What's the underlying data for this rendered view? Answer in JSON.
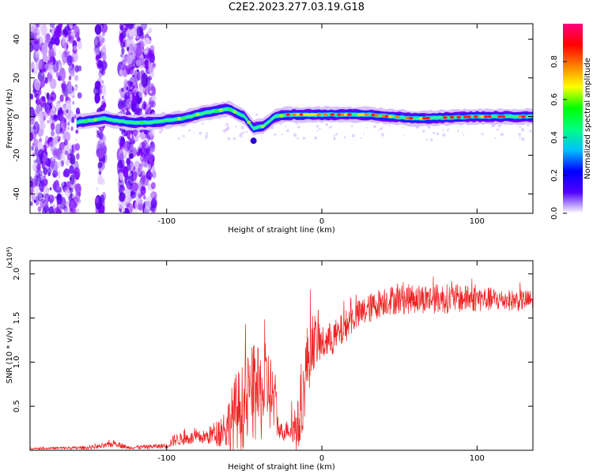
{
  "title": "C2E2.2023.277.03.19.G18",
  "chart_data": [
    {
      "type": "heatmap",
      "name": "spectrogram",
      "xlabel": "Height of straight line (km)",
      "ylabel": "Frequency (Hz)",
      "xlim": [
        -188,
        136
      ],
      "ylim": [
        -50,
        48
      ],
      "xticks": [
        -100,
        0,
        100
      ],
      "xtick_labels": [
        "-100",
        "0",
        "100"
      ],
      "yticks": [
        -40,
        -20,
        0,
        20,
        40
      ],
      "ytick_labels": [
        "-40",
        "-20",
        "0",
        "20",
        "40"
      ],
      "ridge": {
        "x": [
          -158,
          -140,
          -125,
          -110,
          -90,
          -75,
          -60,
          -50,
          -44,
          -38,
          -30,
          -22,
          0,
          30,
          60,
          100,
          136
        ],
        "frequency": [
          -3,
          -1,
          -3,
          -3,
          -1,
          2,
          4,
          0,
          -6,
          -5,
          0,
          1,
          1,
          1,
          -1,
          0,
          0
        ]
      },
      "noise_region_x": [
        -188,
        -108
      ],
      "colorbar": {
        "label": "Normalized spectral amplitude",
        "range": [
          0,
          1
        ],
        "ticks": [
          0.0,
          0.2,
          0.4,
          0.6,
          0.8
        ],
        "tick_labels": [
          "0.0",
          "0.2",
          "0.4",
          "0.6",
          "0.8"
        ],
        "colors": [
          "#ffffff",
          "#5000ff",
          "#0000ff",
          "#00c0ff",
          "#00ff80",
          "#00ff00",
          "#ffff00",
          "#ff8000",
          "#ff0000",
          "#ff0080"
        ]
      }
    },
    {
      "type": "line",
      "name": "snr",
      "xlabel": "Height of straight line (km)",
      "ylabel": "SNR (10 * v/v)",
      "y_scale_label": "(x10⁴)",
      "xlim": [
        -188,
        136
      ],
      "ylim": [
        0,
        2.15
      ],
      "xticks": [
        -100,
        0,
        100
      ],
      "xtick_labels": [
        "-100",
        "0",
        "100"
      ],
      "yticks": [
        0.5,
        1.0,
        1.5,
        2.0
      ],
      "ytick_labels": [
        "0.5",
        "1.0",
        "1.5",
        "2.0"
      ],
      "color": "#ee2222",
      "envelope": {
        "x": [
          -188,
          -150,
          -140,
          -133,
          -125,
          -100,
          -95,
          -75,
          -68,
          -62,
          -55,
          -50,
          -45,
          -40,
          -35,
          -30,
          -28,
          -25,
          -22,
          -18,
          -14,
          -10,
          -6,
          0,
          10,
          20,
          30,
          40,
          60,
          80,
          100,
          120,
          136
        ],
        "mean": [
          0.02,
          0.03,
          0.05,
          0.08,
          0.03,
          0.05,
          0.12,
          0.15,
          0.2,
          0.25,
          0.45,
          0.5,
          0.65,
          0.6,
          0.75,
          0.5,
          0.25,
          0.2,
          0.25,
          0.25,
          0.3,
          0.95,
          1.25,
          1.2,
          1.3,
          1.5,
          1.6,
          1.7,
          1.72,
          1.72,
          1.72,
          1.7,
          1.7
        ],
        "spread": [
          0.01,
          0.02,
          0.03,
          0.04,
          0.02,
          0.03,
          0.07,
          0.08,
          0.15,
          0.25,
          0.45,
          0.5,
          0.55,
          0.55,
          0.5,
          0.4,
          0.1,
          0.1,
          0.1,
          0.3,
          0.3,
          0.45,
          0.35,
          0.2,
          0.2,
          0.17,
          0.17,
          0.17,
          0.17,
          0.17,
          0.15,
          0.12,
          0.12
        ]
      }
    }
  ]
}
